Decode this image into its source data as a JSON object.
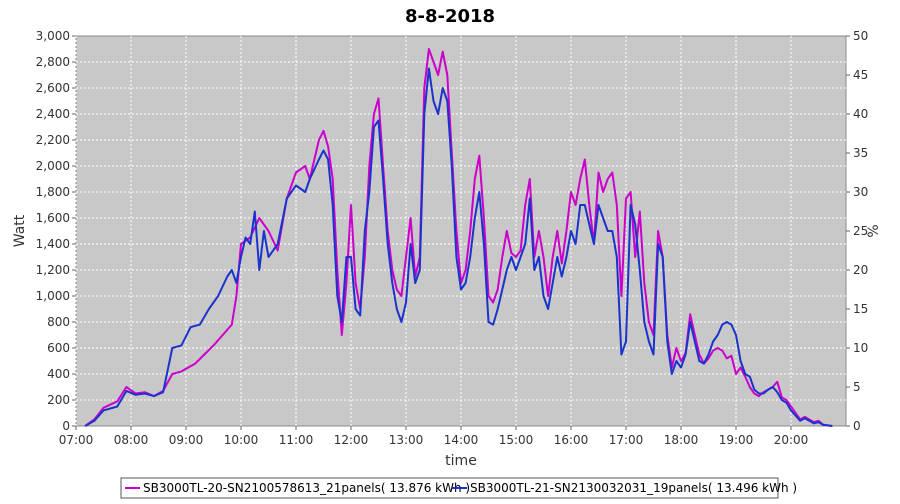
{
  "chart_data": {
    "type": "line",
    "title": "8-8-2018",
    "xlabel": "time",
    "ylabel": "Watt",
    "y2label": "%",
    "xlim": [
      "07:00",
      "21:00"
    ],
    "ylim": [
      0,
      3000
    ],
    "y2lim": [
      0,
      50
    ],
    "x_ticks": [
      "07:00",
      "08:00",
      "09:00",
      "10:00",
      "11:00",
      "12:00",
      "13:00",
      "14:00",
      "15:00",
      "16:00",
      "17:00",
      "18:00",
      "19:00",
      "20:00"
    ],
    "y_ticks": [
      "0",
      "200",
      "400",
      "600",
      "800",
      "1,000",
      "1,200",
      "1,400",
      "1,600",
      "1,800",
      "2,000",
      "2,200",
      "2,400",
      "2,600",
      "2,800",
      "3,000"
    ],
    "y2_ticks": [
      "0",
      "5",
      "10",
      "15",
      "20",
      "25",
      "30",
      "35",
      "40",
      "45",
      "50"
    ],
    "grid": true,
    "legend": "bottom",
    "series": [
      {
        "name": "SB3000TL-20-SN2100578613_21panels( 13.876 kWh )",
        "color": "#cc00cc",
        "points": [
          [
            "07:10",
            0
          ],
          [
            "07:20",
            50
          ],
          [
            "07:30",
            140
          ],
          [
            "07:45",
            190
          ],
          [
            "07:55",
            300
          ],
          [
            "08:05",
            250
          ],
          [
            "08:15",
            260
          ],
          [
            "08:25",
            230
          ],
          [
            "08:35",
            270
          ],
          [
            "08:45",
            400
          ],
          [
            "08:55",
            420
          ],
          [
            "09:10",
            480
          ],
          [
            "09:20",
            550
          ],
          [
            "09:30",
            620
          ],
          [
            "09:40",
            700
          ],
          [
            "09:50",
            780
          ],
          [
            "09:55",
            1000
          ],
          [
            "10:00",
            1400
          ],
          [
            "10:10",
            1450
          ],
          [
            "10:20",
            1600
          ],
          [
            "10:30",
            1500
          ],
          [
            "10:40",
            1350
          ],
          [
            "10:50",
            1750
          ],
          [
            "11:00",
            1950
          ],
          [
            "11:10",
            2000
          ],
          [
            "11:15",
            1900
          ],
          [
            "11:25",
            2200
          ],
          [
            "11:30",
            2270
          ],
          [
            "11:35",
            2150
          ],
          [
            "11:40",
            1900
          ],
          [
            "11:45",
            1200
          ],
          [
            "11:50",
            700
          ],
          [
            "11:55",
            1100
          ],
          [
            "12:00",
            1700
          ],
          [
            "12:05",
            1100
          ],
          [
            "12:10",
            900
          ],
          [
            "12:15",
            1300
          ],
          [
            "12:20",
            2000
          ],
          [
            "12:25",
            2400
          ],
          [
            "12:30",
            2520
          ],
          [
            "12:35",
            2000
          ],
          [
            "12:40",
            1500
          ],
          [
            "12:45",
            1200
          ],
          [
            "12:50",
            1050
          ],
          [
            "12:55",
            1000
          ],
          [
            "13:00",
            1300
          ],
          [
            "13:05",
            1600
          ],
          [
            "13:10",
            1150
          ],
          [
            "13:15",
            1300
          ],
          [
            "13:20",
            2600
          ],
          [
            "13:25",
            2900
          ],
          [
            "13:30",
            2800
          ],
          [
            "13:35",
            2700
          ],
          [
            "13:40",
            2880
          ],
          [
            "13:45",
            2700
          ],
          [
            "13:50",
            2100
          ],
          [
            "13:55",
            1500
          ],
          [
            "14:00",
            1100
          ],
          [
            "14:05",
            1200
          ],
          [
            "14:10",
            1500
          ],
          [
            "14:15",
            1900
          ],
          [
            "14:20",
            2080
          ],
          [
            "14:25",
            1600
          ],
          [
            "14:30",
            1000
          ],
          [
            "14:35",
            950
          ],
          [
            "14:40",
            1050
          ],
          [
            "14:45",
            1300
          ],
          [
            "14:50",
            1500
          ],
          [
            "14:55",
            1330
          ],
          [
            "15:00",
            1300
          ],
          [
            "15:05",
            1350
          ],
          [
            "15:10",
            1700
          ],
          [
            "15:15",
            1900
          ],
          [
            "15:20",
            1300
          ],
          [
            "15:25",
            1500
          ],
          [
            "15:30",
            1300
          ],
          [
            "15:35",
            1000
          ],
          [
            "15:40",
            1300
          ],
          [
            "15:45",
            1500
          ],
          [
            "15:50",
            1250
          ],
          [
            "15:55",
            1500
          ],
          [
            "16:00",
            1800
          ],
          [
            "16:05",
            1700
          ],
          [
            "16:10",
            1900
          ],
          [
            "16:15",
            2050
          ],
          [
            "16:20",
            1700
          ],
          [
            "16:25",
            1400
          ],
          [
            "16:30",
            1950
          ],
          [
            "16:35",
            1800
          ],
          [
            "16:40",
            1900
          ],
          [
            "16:45",
            1950
          ],
          [
            "16:50",
            1700
          ],
          [
            "16:55",
            1000
          ],
          [
            "17:00",
            1750
          ],
          [
            "17:05",
            1800
          ],
          [
            "17:10",
            1300
          ],
          [
            "17:15",
            1650
          ],
          [
            "17:20",
            1100
          ],
          [
            "17:25",
            800
          ],
          [
            "17:30",
            700
          ],
          [
            "17:35",
            1500
          ],
          [
            "17:40",
            1300
          ],
          [
            "17:45",
            700
          ],
          [
            "17:50",
            450
          ],
          [
            "17:55",
            600
          ],
          [
            "18:00",
            500
          ],
          [
            "18:05",
            560
          ],
          [
            "18:10",
            860
          ],
          [
            "18:15",
            700
          ],
          [
            "18:20",
            550
          ],
          [
            "18:25",
            480
          ],
          [
            "18:30",
            520
          ],
          [
            "18:35",
            580
          ],
          [
            "18:40",
            600
          ],
          [
            "18:45",
            580
          ],
          [
            "18:50",
            520
          ],
          [
            "18:55",
            540
          ],
          [
            "19:00",
            400
          ],
          [
            "19:05",
            450
          ],
          [
            "19:10",
            380
          ],
          [
            "19:15",
            300
          ],
          [
            "19:20",
            250
          ],
          [
            "19:25",
            230
          ],
          [
            "19:30",
            260
          ],
          [
            "19:35",
            280
          ],
          [
            "19:40",
            300
          ],
          [
            "19:45",
            340
          ],
          [
            "19:50",
            220
          ],
          [
            "19:55",
            200
          ],
          [
            "20:00",
            150
          ],
          [
            "20:05",
            100
          ],
          [
            "20:10",
            50
          ],
          [
            "20:15",
            70
          ],
          [
            "20:20",
            50
          ],
          [
            "20:25",
            30
          ],
          [
            "20:30",
            40
          ],
          [
            "20:35",
            10
          ],
          [
            "20:45",
            0
          ]
        ]
      },
      {
        "name": "SB3000TL-21-SN2130032031_19panels( 13.496 kWh )",
        "color": "#1a33cc",
        "points": [
          [
            "07:10",
            0
          ],
          [
            "07:20",
            40
          ],
          [
            "07:30",
            120
          ],
          [
            "07:45",
            150
          ],
          [
            "07:55",
            270
          ],
          [
            "08:05",
            240
          ],
          [
            "08:15",
            250
          ],
          [
            "08:25",
            230
          ],
          [
            "08:35",
            260
          ],
          [
            "08:45",
            600
          ],
          [
            "08:55",
            620
          ],
          [
            "09:05",
            760
          ],
          [
            "09:15",
            780
          ],
          [
            "09:25",
            900
          ],
          [
            "09:35",
            1000
          ],
          [
            "09:45",
            1150
          ],
          [
            "09:50",
            1200
          ],
          [
            "09:55",
            1100
          ],
          [
            "10:00",
            1300
          ],
          [
            "10:05",
            1450
          ],
          [
            "10:10",
            1400
          ],
          [
            "10:15",
            1650
          ],
          [
            "10:20",
            1200
          ],
          [
            "10:25",
            1500
          ],
          [
            "10:30",
            1300
          ],
          [
            "10:40",
            1400
          ],
          [
            "10:50",
            1750
          ],
          [
            "11:00",
            1850
          ],
          [
            "11:10",
            1800
          ],
          [
            "11:15",
            1900
          ],
          [
            "11:25",
            2050
          ],
          [
            "11:30",
            2120
          ],
          [
            "11:35",
            2050
          ],
          [
            "11:40",
            1700
          ],
          [
            "11:45",
            1000
          ],
          [
            "11:50",
            800
          ],
          [
            "11:55",
            1300
          ],
          [
            "12:00",
            1300
          ],
          [
            "12:05",
            900
          ],
          [
            "12:10",
            850
          ],
          [
            "12:15",
            1500
          ],
          [
            "12:20",
            1800
          ],
          [
            "12:25",
            2300
          ],
          [
            "12:30",
            2350
          ],
          [
            "12:35",
            1900
          ],
          [
            "12:40",
            1400
          ],
          [
            "12:45",
            1100
          ],
          [
            "12:50",
            900
          ],
          [
            "12:55",
            800
          ],
          [
            "13:00",
            950
          ],
          [
            "13:05",
            1400
          ],
          [
            "13:10",
            1100
          ],
          [
            "13:15",
            1200
          ],
          [
            "13:20",
            2400
          ],
          [
            "13:25",
            2750
          ],
          [
            "13:30",
            2500
          ],
          [
            "13:35",
            2400
          ],
          [
            "13:40",
            2600
          ],
          [
            "13:45",
            2500
          ],
          [
            "13:50",
            2000
          ],
          [
            "13:55",
            1300
          ],
          [
            "14:00",
            1050
          ],
          [
            "14:05",
            1100
          ],
          [
            "14:10",
            1300
          ],
          [
            "14:15",
            1600
          ],
          [
            "14:20",
            1800
          ],
          [
            "14:25",
            1400
          ],
          [
            "14:30",
            800
          ],
          [
            "14:35",
            780
          ],
          [
            "14:40",
            900
          ],
          [
            "14:45",
            1050
          ],
          [
            "14:50",
            1200
          ],
          [
            "14:55",
            1300
          ],
          [
            "15:00",
            1200
          ],
          [
            "15:05",
            1300
          ],
          [
            "15:10",
            1400
          ],
          [
            "15:15",
            1750
          ],
          [
            "15:20",
            1200
          ],
          [
            "15:25",
            1300
          ],
          [
            "15:30",
            1000
          ],
          [
            "15:35",
            900
          ],
          [
            "15:40",
            1100
          ],
          [
            "15:45",
            1300
          ],
          [
            "15:50",
            1150
          ],
          [
            "15:55",
            1300
          ],
          [
            "16:00",
            1500
          ],
          [
            "16:05",
            1400
          ],
          [
            "16:10",
            1700
          ],
          [
            "16:15",
            1700
          ],
          [
            "16:20",
            1550
          ],
          [
            "16:25",
            1400
          ],
          [
            "16:30",
            1700
          ],
          [
            "16:35",
            1600
          ],
          [
            "16:40",
            1500
          ],
          [
            "16:45",
            1500
          ],
          [
            "16:50",
            1300
          ],
          [
            "16:55",
            550
          ],
          [
            "17:00",
            650
          ],
          [
            "17:05",
            1700
          ],
          [
            "17:10",
            1550
          ],
          [
            "17:15",
            1200
          ],
          [
            "17:20",
            800
          ],
          [
            "17:25",
            650
          ],
          [
            "17:30",
            550
          ],
          [
            "17:35",
            1400
          ],
          [
            "17:40",
            1300
          ],
          [
            "17:45",
            650
          ],
          [
            "17:50",
            400
          ],
          [
            "17:55",
            500
          ],
          [
            "18:00",
            450
          ],
          [
            "18:05",
            550
          ],
          [
            "18:10",
            800
          ],
          [
            "18:15",
            650
          ],
          [
            "18:20",
            500
          ],
          [
            "18:25",
            480
          ],
          [
            "18:30",
            550
          ],
          [
            "18:35",
            650
          ],
          [
            "18:40",
            700
          ],
          [
            "18:45",
            780
          ],
          [
            "18:50",
            800
          ],
          [
            "18:55",
            780
          ],
          [
            "19:00",
            700
          ],
          [
            "19:05",
            500
          ],
          [
            "19:10",
            400
          ],
          [
            "19:15",
            380
          ],
          [
            "19:20",
            280
          ],
          [
            "19:25",
            250
          ],
          [
            "19:30",
            250
          ],
          [
            "19:35",
            280
          ],
          [
            "19:40",
            300
          ],
          [
            "19:45",
            260
          ],
          [
            "19:50",
            200
          ],
          [
            "19:55",
            180
          ],
          [
            "20:00",
            120
          ],
          [
            "20:05",
            80
          ],
          [
            "20:10",
            40
          ],
          [
            "20:15",
            60
          ],
          [
            "20:20",
            40
          ],
          [
            "20:25",
            20
          ],
          [
            "20:30",
            30
          ],
          [
            "20:35",
            10
          ],
          [
            "20:45",
            0
          ]
        ]
      }
    ]
  }
}
